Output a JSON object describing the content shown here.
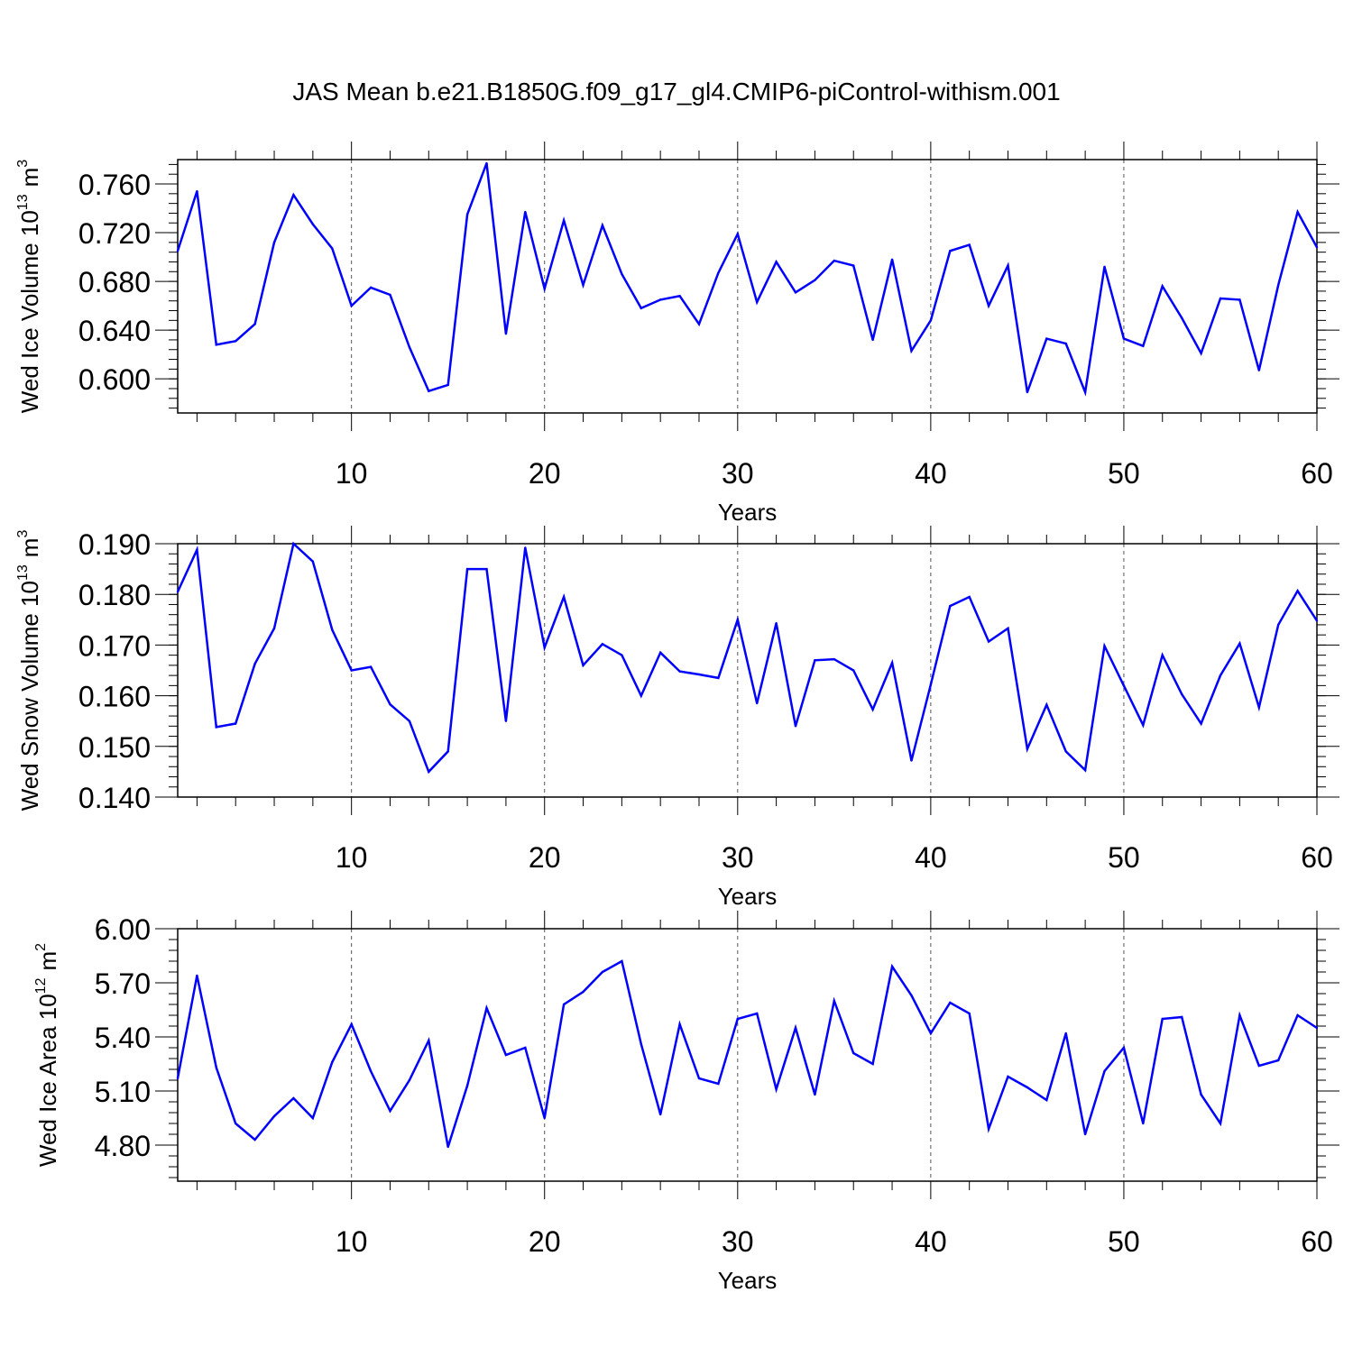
{
  "title": "JAS Mean b.e21.B1850G.f09_g17_gl4.CMIP6-piControl-withism.001",
  "colors": {
    "line": "#0000ff",
    "axis": "#000000",
    "grid": "#555555"
  },
  "chart_data": [
    {
      "type": "line",
      "ylabel_main": "Wed Ice Volume 10",
      "ylabel_exp": "13",
      "ylabel_unit": "m",
      "ylabel_unit_exp": "3",
      "xlabel": "Years",
      "xlim": [
        1,
        60
      ],
      "ylim": [
        0.572,
        0.78
      ],
      "yticks": [
        0.6,
        0.64,
        0.68,
        0.72,
        0.76
      ],
      "ytick_labels": [
        "0.600",
        "0.640",
        "0.680",
        "0.720",
        "0.760"
      ],
      "xticks": [
        10,
        20,
        30,
        40,
        50,
        60
      ],
      "xtick_labels": [
        "10",
        "20",
        "30",
        "40",
        "50",
        "60"
      ],
      "grid_x": [
        10,
        20,
        30,
        40,
        50
      ],
      "series": [
        {
          "name": "Wed Ice Volume",
          "x": [
            1,
            2,
            3,
            4,
            5,
            6,
            7,
            8,
            9,
            10,
            11,
            12,
            13,
            14,
            15,
            16,
            17,
            18,
            19,
            20,
            21,
            22,
            23,
            24,
            25,
            26,
            27,
            28,
            29,
            30,
            31,
            32,
            33,
            34,
            35,
            36,
            37,
            38,
            39,
            40,
            41,
            42,
            43,
            44,
            45,
            46,
            47,
            48,
            49,
            50,
            51,
            52,
            53,
            54,
            55,
            56,
            57,
            58,
            59,
            60
          ],
          "values": [
            0.705,
            0.754,
            0.628,
            0.631,
            0.645,
            0.712,
            0.751,
            0.727,
            0.707,
            0.66,
            0.675,
            0.669,
            0.626,
            0.59,
            0.595,
            0.735,
            0.777,
            0.637,
            0.737,
            0.674,
            0.73,
            0.677,
            0.726,
            0.686,
            0.658,
            0.665,
            0.668,
            0.645,
            0.687,
            0.719,
            0.663,
            0.696,
            0.671,
            0.681,
            0.697,
            0.693,
            0.632,
            0.698,
            0.623,
            0.648,
            0.705,
            0.71,
            0.66,
            0.693,
            0.589,
            0.633,
            0.629,
            0.589,
            0.692,
            0.633,
            0.627,
            0.676,
            0.65,
            0.621,
            0.666,
            0.665,
            0.607,
            0.677,
            0.737,
            0.708
          ]
        }
      ]
    },
    {
      "type": "line",
      "ylabel_main": "Wed Snow Volume 10",
      "ylabel_exp": "13",
      "ylabel_unit": "m",
      "ylabel_unit_exp": "3",
      "xlabel": "Years",
      "xlim": [
        1,
        60
      ],
      "ylim": [
        0.14,
        0.19
      ],
      "yticks": [
        0.14,
        0.15,
        0.16,
        0.17,
        0.18,
        0.19
      ],
      "ytick_labels": [
        "0.140",
        "0.150",
        "0.160",
        "0.170",
        "0.180",
        "0.190"
      ],
      "xticks": [
        10,
        20,
        30,
        40,
        50,
        60
      ],
      "xtick_labels": [
        "10",
        "20",
        "30",
        "40",
        "50",
        "60"
      ],
      "grid_x": [
        10,
        20,
        30,
        40,
        50
      ],
      "series": [
        {
          "name": "Wed Snow Volume",
          "x": [
            1,
            2,
            3,
            4,
            5,
            6,
            7,
            8,
            9,
            10,
            11,
            12,
            13,
            14,
            15,
            16,
            17,
            18,
            19,
            20,
            21,
            22,
            23,
            24,
            25,
            26,
            27,
            28,
            29,
            30,
            31,
            32,
            33,
            34,
            35,
            36,
            37,
            38,
            39,
            40,
            41,
            42,
            43,
            44,
            45,
            46,
            47,
            48,
            49,
            50,
            51,
            52,
            53,
            54,
            55,
            56,
            57,
            58,
            59,
            60
          ],
          "values": [
            0.1805,
            0.1888,
            0.1538,
            0.1545,
            0.1663,
            0.1733,
            0.19,
            0.1865,
            0.173,
            0.165,
            0.1657,
            0.1583,
            0.155,
            0.145,
            0.149,
            0.185,
            0.185,
            0.155,
            0.1892,
            0.1695,
            0.1795,
            0.166,
            0.1702,
            0.168,
            0.16,
            0.1685,
            0.1648,
            0.1642,
            0.1635,
            0.175,
            0.1585,
            0.1743,
            0.154,
            0.167,
            0.1672,
            0.165,
            0.1573,
            0.1665,
            0.1472,
            0.1622,
            0.1777,
            0.1795,
            0.1707,
            0.1733,
            0.1495,
            0.1582,
            0.149,
            0.1453,
            0.1698,
            0.162,
            0.1542,
            0.168,
            0.1603,
            0.1545,
            0.164,
            0.1703,
            0.1577,
            0.174,
            0.1807,
            0.1748
          ]
        }
      ]
    },
    {
      "type": "line",
      "ylabel_main": "Wed Ice Area 10",
      "ylabel_exp": "12",
      "ylabel_unit": "m",
      "ylabel_unit_exp": "2",
      "xlabel": "Years",
      "xlim": [
        1,
        60
      ],
      "ylim": [
        4.6,
        6.0
      ],
      "yticks": [
        4.8,
        5.1,
        5.4,
        5.7,
        6.0
      ],
      "ytick_labels": [
        "4.80",
        "5.10",
        "5.40",
        "5.70",
        "6.00"
      ],
      "xticks": [
        10,
        20,
        30,
        40,
        50,
        60
      ],
      "xtick_labels": [
        "10",
        "20",
        "30",
        "40",
        "50",
        "60"
      ],
      "grid_x": [
        10,
        20,
        30,
        40,
        50
      ],
      "series": [
        {
          "name": "Wed Ice Area",
          "x": [
            1,
            2,
            3,
            4,
            5,
            6,
            7,
            8,
            9,
            10,
            11,
            12,
            13,
            14,
            15,
            16,
            17,
            18,
            19,
            20,
            21,
            22,
            23,
            24,
            25,
            26,
            27,
            28,
            29,
            30,
            31,
            32,
            33,
            34,
            35,
            36,
            37,
            38,
            39,
            40,
            41,
            42,
            43,
            44,
            45,
            46,
            47,
            48,
            49,
            50,
            51,
            52,
            53,
            54,
            55,
            56,
            57,
            58,
            59,
            60
          ],
          "values": [
            5.17,
            5.74,
            5.23,
            4.92,
            4.83,
            4.96,
            5.06,
            4.95,
            5.26,
            5.47,
            5.21,
            4.99,
            5.16,
            5.38,
            4.79,
            5.13,
            5.56,
            5.3,
            5.34,
            4.95,
            5.58,
            5.65,
            5.76,
            5.82,
            5.36,
            4.97,
            5.47,
            5.17,
            5.14,
            5.5,
            5.53,
            5.11,
            5.45,
            5.08,
            5.6,
            5.31,
            5.25,
            5.79,
            5.63,
            5.42,
            5.59,
            5.53,
            4.89,
            5.18,
            5.12,
            5.05,
            5.42,
            4.86,
            5.21,
            5.34,
            4.92,
            5.5,
            5.51,
            5.08,
            4.92,
            5.52,
            5.24,
            5.27,
            5.52,
            5.45
          ]
        }
      ]
    }
  ]
}
